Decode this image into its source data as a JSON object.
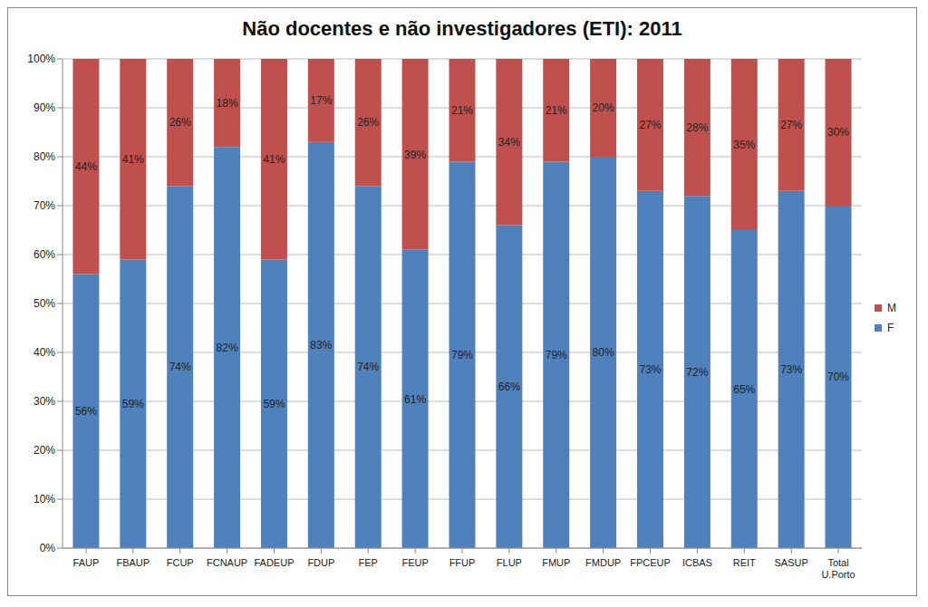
{
  "chart_data": {
    "type": "bar",
    "title": "Não docentes e não investigadores (ETI): 2011",
    "categories": [
      "FAUP",
      "FBAUP",
      "FCUP",
      "FCNAUP",
      "FADEUP",
      "FDUP",
      "FEP",
      "FEUP",
      "FFUP",
      "FLUP",
      "FMUP",
      "FMDUP",
      "FPCEUP",
      "ICBAS",
      "REIT",
      "SASUP",
      "Total U.Porto"
    ],
    "series": [
      {
        "name": "F",
        "color": "#4f81bd",
        "values": [
          56,
          59,
          74,
          82,
          59,
          83,
          74,
          61,
          79,
          66,
          79,
          80,
          73,
          72,
          65,
          73,
          70
        ],
        "value_labels": [
          "56%",
          "59%",
          "74%",
          "82%",
          "59%",
          "83%",
          "74%",
          "61%",
          "79%",
          "66%",
          "79%",
          "80%",
          "73%",
          "72%",
          "65%",
          "73%",
          "70%"
        ]
      },
      {
        "name": "M",
        "color": "#c0504d",
        "values": [
          44,
          41,
          26,
          18,
          41,
          17,
          26,
          39,
          21,
          34,
          21,
          20,
          27,
          28,
          35,
          27,
          30
        ],
        "value_labels": [
          "44%",
          "41%",
          "26%",
          "18%",
          "41%",
          "17%",
          "26%",
          "39%",
          "21%",
          "34%",
          "21%",
          "20%",
          "27%",
          "28%",
          "35%",
          "27%",
          "30%"
        ]
      }
    ],
    "ylim": [
      0,
      100
    ],
    "yticks": [
      {
        "value": 0,
        "label": "0%"
      },
      {
        "value": 10,
        "label": "10%"
      },
      {
        "value": 20,
        "label": "20%"
      },
      {
        "value": 30,
        "label": "30%"
      },
      {
        "value": 40,
        "label": "40%"
      },
      {
        "value": 50,
        "label": "50%"
      },
      {
        "value": 60,
        "label": "60%"
      },
      {
        "value": 70,
        "label": "70%"
      },
      {
        "value": 80,
        "label": "80%"
      },
      {
        "value": 90,
        "label": "90%"
      },
      {
        "value": 100,
        "label": "100%"
      }
    ],
    "stacked": true,
    "data_labels": true,
    "grid": true,
    "legend": "right"
  }
}
